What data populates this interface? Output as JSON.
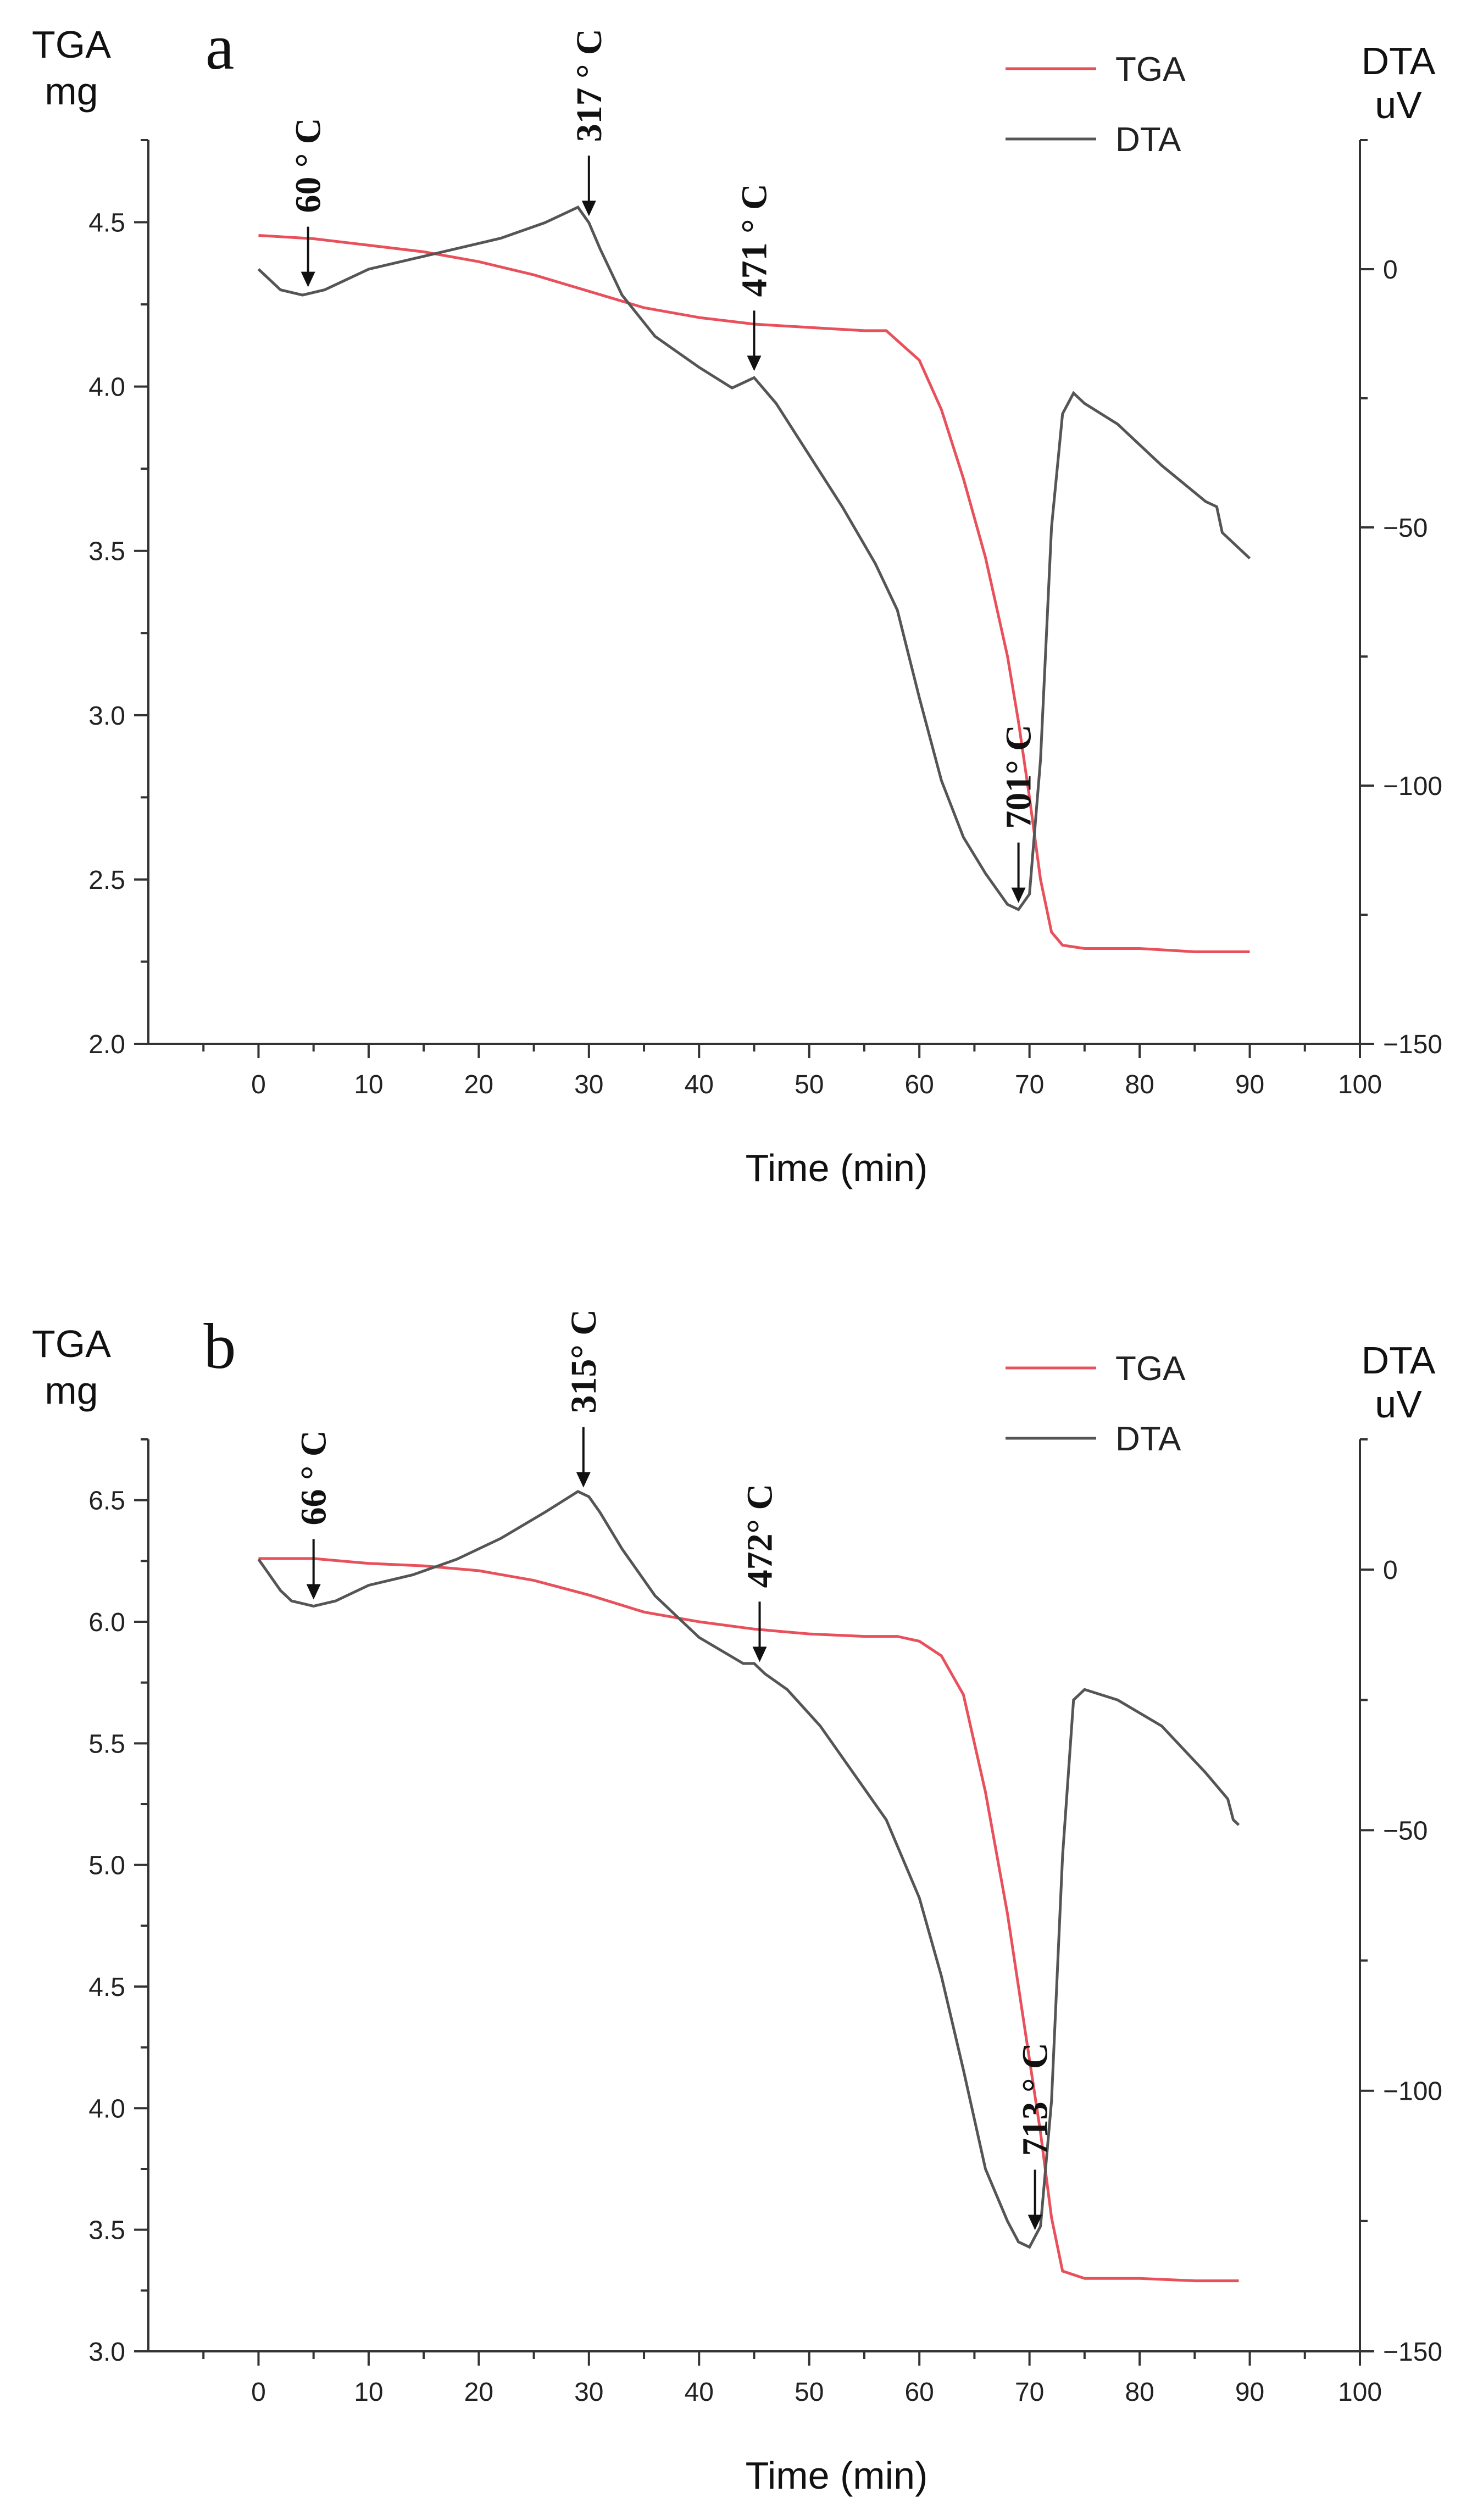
{
  "chart_data": [
    {
      "type": "line",
      "panel_label": "a",
      "xlabel": "Time (min)",
      "ylabel": [
        "TGA",
        "mg"
      ],
      "y2label": [
        "DTA",
        "uV"
      ],
      "xlim": [
        -10,
        100
      ],
      "ylim": [
        2.0,
        4.75
      ],
      "y2lim": [
        -150,
        25
      ],
      "x_ticks": [
        0,
        10,
        20,
        30,
        40,
        50,
        60,
        70,
        80,
        90,
        100
      ],
      "y_ticks": [
        2.0,
        2.5,
        3.0,
        3.5,
        4.0,
        4.5
      ],
      "y_tick_labels": [
        "2.0",
        "2.5",
        "3.0",
        "3.5",
        "4.0",
        "4.5"
      ],
      "y2_ticks": [
        0,
        -50,
        -100,
        -150
      ],
      "y2_tick_labels": [
        "0",
        "−50",
        "−100",
        "−150"
      ],
      "legend": [
        "TGA",
        "DTA"
      ],
      "legend_position": "top-right",
      "colors": {
        "TGA": "#e8505b",
        "DTA": "#555555"
      },
      "series": [
        {
          "name": "TGA",
          "axis": "left",
          "x": [
            0,
            5,
            10,
            15,
            20,
            25,
            30,
            35,
            40,
            45,
            50,
            55,
            57,
            60,
            62,
            64,
            66,
            68,
            69,
            70,
            71,
            72,
            73,
            75,
            80,
            85,
            90
          ],
          "y": [
            4.46,
            4.45,
            4.43,
            4.41,
            4.38,
            4.34,
            4.29,
            4.24,
            4.21,
            4.19,
            4.18,
            4.17,
            4.17,
            4.08,
            3.93,
            3.72,
            3.48,
            3.18,
            2.98,
            2.75,
            2.5,
            2.34,
            2.3,
            2.29,
            2.29,
            2.28,
            2.28
          ]
        },
        {
          "name": "DTA",
          "axis": "right",
          "x": [
            0,
            1,
            2,
            4,
            6,
            8,
            10,
            14,
            18,
            22,
            26,
            29,
            30,
            31,
            33,
            36,
            40,
            43,
            44,
            45,
            47,
            50,
            53,
            56,
            58,
            60,
            62,
            64,
            66,
            68,
            69,
            70,
            71,
            72,
            73,
            74,
            75,
            78,
            82,
            86,
            87,
            87.5,
            90
          ],
          "y": [
            0,
            -2,
            -4,
            -5,
            -4,
            -2,
            0,
            2,
            4,
            6,
            9,
            12,
            9,
            4,
            -5,
            -13,
            -19,
            -23,
            -22,
            -21,
            -26,
            -36,
            -46,
            -57,
            -66,
            -83,
            -99,
            -110,
            -117,
            -123,
            -124,
            -121,
            -95,
            -50,
            -28,
            -24,
            -26,
            -30,
            -38,
            -45,
            -46,
            -51,
            -56
          ]
        }
      ],
      "annotations": [
        {
          "text": "60 ° C",
          "x": 4.5
        },
        {
          "text": "317 ° C",
          "x": 30
        },
        {
          "text": "471 ° C",
          "x": 45
        },
        {
          "text": "701° C",
          "x": 69
        }
      ]
    },
    {
      "type": "line",
      "panel_label": "b",
      "xlabel": "Time (min)",
      "ylabel": [
        "TGA",
        "mg"
      ],
      "y2label": [
        "DTA",
        "uV"
      ],
      "xlim": [
        -10,
        100
      ],
      "ylim": [
        3.0,
        6.75
      ],
      "y2lim": [
        -150,
        25
      ],
      "x_ticks": [
        0,
        10,
        20,
        30,
        40,
        50,
        60,
        70,
        80,
        90,
        100
      ],
      "y_ticks": [
        3.0,
        3.5,
        4.0,
        4.5,
        5.0,
        5.5,
        6.0,
        6.5
      ],
      "y_tick_labels": [
        "3.0",
        "3.5",
        "4.0",
        "4.5",
        "5.0",
        "5.5",
        "6.0",
        "6.5"
      ],
      "y2_ticks": [
        0,
        -50,
        -100,
        -150
      ],
      "y2_tick_labels": [
        "0",
        "−50",
        "−100",
        "−150"
      ],
      "legend": [
        "TGA",
        "DTA"
      ],
      "legend_position": "top-right",
      "colors": {
        "TGA": "#e8505b",
        "DTA": "#555555"
      },
      "series": [
        {
          "name": "TGA",
          "axis": "left",
          "x": [
            0,
            5,
            10,
            15,
            20,
            25,
            30,
            35,
            40,
            45,
            50,
            55,
            58,
            60,
            62,
            64,
            66,
            68,
            70,
            71,
            72,
            73,
            75,
            80,
            85,
            89
          ],
          "y": [
            6.26,
            6.26,
            6.24,
            6.23,
            6.21,
            6.17,
            6.11,
            6.04,
            6.0,
            5.97,
            5.95,
            5.94,
            5.94,
            5.92,
            5.86,
            5.7,
            5.3,
            4.8,
            4.2,
            3.9,
            3.55,
            3.33,
            3.3,
            3.3,
            3.29,
            3.29
          ]
        },
        {
          "name": "DTA",
          "axis": "right",
          "x": [
            0,
            1,
            2,
            3,
            5,
            7,
            10,
            14,
            18,
            22,
            26,
            29,
            30,
            31,
            33,
            36,
            40,
            44,
            45,
            46,
            48,
            51,
            54,
            57,
            60,
            62,
            64,
            66,
            68,
            69,
            70,
            71,
            72,
            73,
            74,
            75,
            78,
            82,
            86,
            88,
            88.5,
            89
          ],
          "y": [
            2,
            -1,
            -4,
            -6,
            -7,
            -6,
            -3,
            -1,
            2,
            6,
            11,
            15,
            14,
            11,
            4,
            -5,
            -13,
            -18,
            -18,
            -20,
            -23,
            -30,
            -39,
            -48,
            -63,
            -78,
            -96,
            -115,
            -125,
            -129,
            -130,
            -126,
            -102,
            -55,
            -25,
            -23,
            -25,
            -30,
            -39,
            -44,
            -48,
            -49
          ]
        }
      ],
      "annotations": [
        {
          "text": "66 ° C",
          "x": 5
        },
        {
          "text": "315° C",
          "x": 29.5
        },
        {
          "text": "472° C",
          "x": 45.5
        },
        {
          "text": "713 ° C",
          "x": 70.5
        }
      ]
    }
  ]
}
